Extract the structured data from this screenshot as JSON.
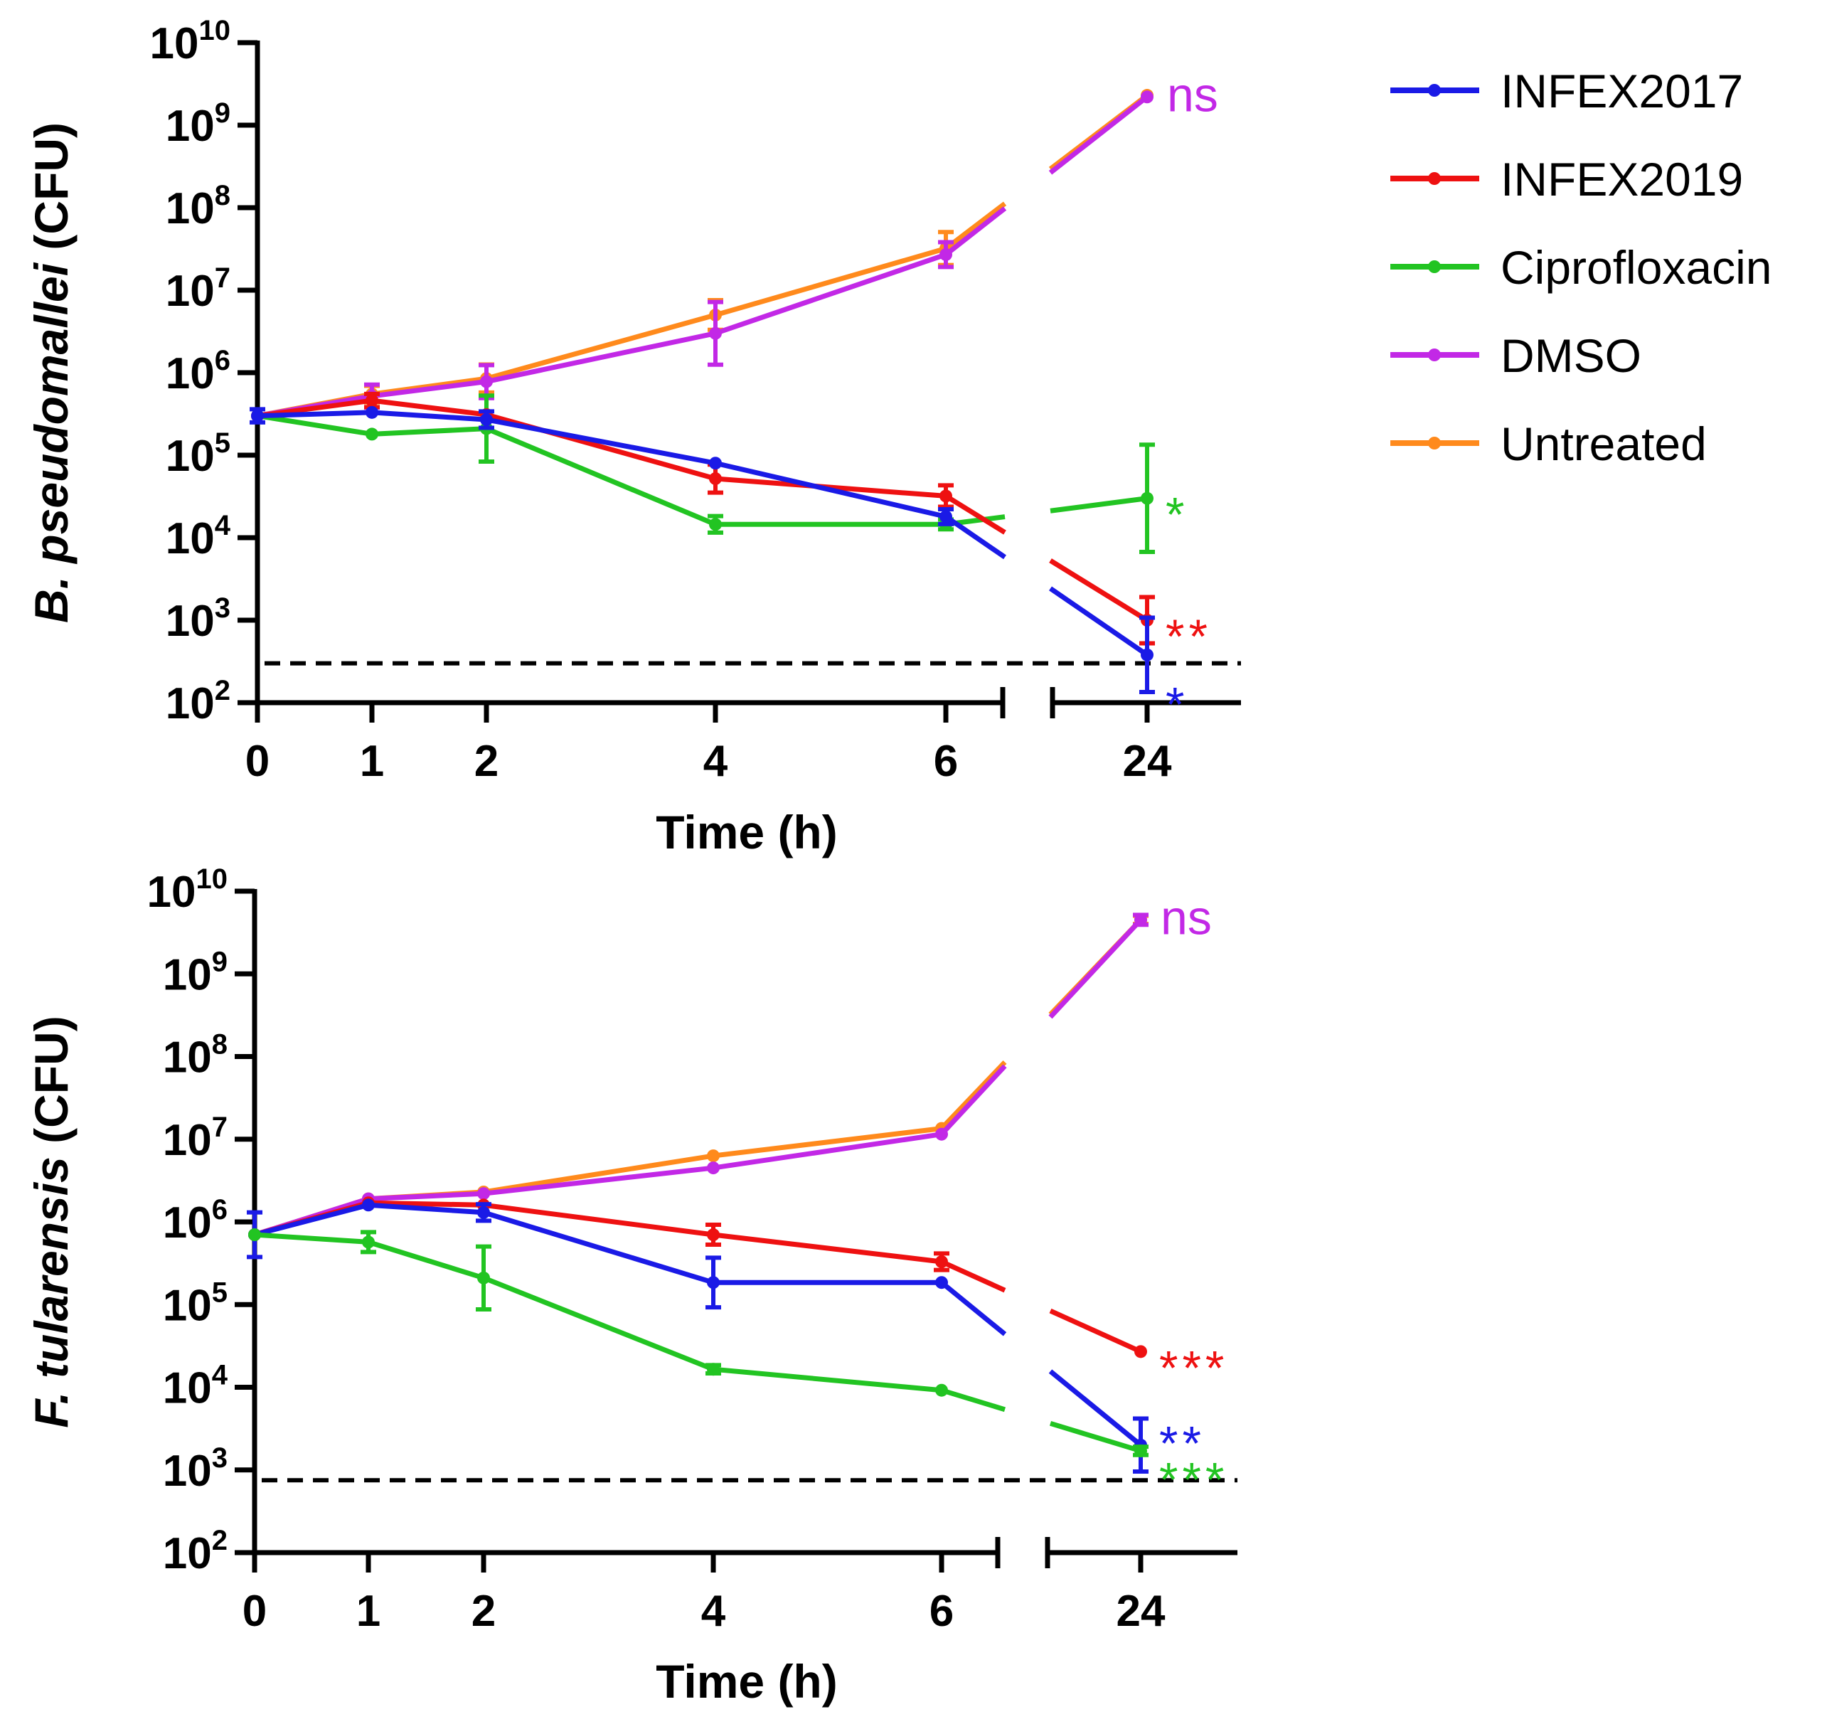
{
  "legend": [
    {
      "name": "INFEX2017",
      "color": "#1a1ae6"
    },
    {
      "name": "INFEX2019",
      "color": "#ee1111"
    },
    {
      "name": "Ciprofloxacin",
      "color": "#22c422"
    },
    {
      "name": "DMSO",
      "color": "#c228e6"
    },
    {
      "name": "Untreated",
      "color": "#ff8a1c"
    }
  ],
  "chart_data": [
    {
      "type": "line",
      "title": "",
      "xlabel": "Time (h)",
      "ylabel_italic": "B. pseudomallei",
      "ylabel_rest": " (CFU)",
      "yscale": "log",
      "ylim": [
        100,
        10000000000
      ],
      "y_ticks": [
        {
          "base": "10",
          "exp": "2"
        },
        {
          "base": "10",
          "exp": "3"
        },
        {
          "base": "10",
          "exp": "4"
        },
        {
          "base": "10",
          "exp": "5"
        },
        {
          "base": "10",
          "exp": "6"
        },
        {
          "base": "10",
          "exp": "7"
        },
        {
          "base": "10",
          "exp": "8"
        },
        {
          "base": "10",
          "exp": "9"
        },
        {
          "base": "10",
          "exp": "10"
        }
      ],
      "x_ticks": [
        "0",
        "1",
        "2",
        "4",
        "6",
        "24"
      ],
      "x": [
        0,
        1,
        2,
        4,
        6,
        24
      ],
      "axis_break": "between 6 and 24",
      "detection_limit": 300,
      "series": [
        {
          "name": "Untreated",
          "color": "#ff8a1c",
          "values": [
            300000,
            550000,
            850000,
            5000000,
            32000000,
            2300000000
          ],
          "err": [
            0,
            0.1,
            0.17,
            0.18,
            0.2,
            0
          ]
        },
        {
          "name": "DMSO",
          "color": "#c228e6",
          "values": [
            300000,
            520000,
            780000,
            3000000,
            27000000,
            2200000000
          ],
          "err": [
            0,
            0.14,
            0.2,
            0.38,
            0.15,
            0
          ]
        },
        {
          "name": "Ciprofloxacin",
          "color": "#22c422",
          "values": [
            300000,
            180000,
            210000,
            14500,
            14500,
            30000
          ],
          "err": [
            0,
            0,
            0.4,
            0.1,
            0.06,
            0.65
          ]
        },
        {
          "name": "INFEX2019",
          "color": "#ee1111",
          "values": [
            300000,
            460000,
            310000,
            52000,
            32000,
            1000
          ],
          "err": [
            0,
            0.08,
            0,
            0.17,
            0.13,
            0.28
          ]
        },
        {
          "name": "INFEX2017",
          "color": "#1a1ae6",
          "values": [
            300000,
            330000,
            270000,
            80000,
            18000,
            380
          ],
          "err": [
            0.08,
            0,
            0.1,
            0,
            0.09,
            0.45
          ]
        }
      ],
      "annotations": [
        {
          "text": "ns",
          "color": "#c228e6",
          "at_value": 2200000000
        },
        {
          "text": "*",
          "color": "#22c422",
          "at_value": 30000
        },
        {
          "text": "**",
          "color": "#ee1111",
          "at_value": 1000
        },
        {
          "text": "*",
          "color": "#1a1ae6",
          "at_value": 150
        }
      ]
    },
    {
      "type": "line",
      "title": "",
      "xlabel": "Time (h)",
      "ylabel_italic": "F. tularensis",
      "ylabel_rest": " (CFU)",
      "yscale": "log",
      "ylim": [
        100,
        10000000000
      ],
      "y_ticks": [
        {
          "base": "10",
          "exp": "2"
        },
        {
          "base": "10",
          "exp": "3"
        },
        {
          "base": "10",
          "exp": "4"
        },
        {
          "base": "10",
          "exp": "5"
        },
        {
          "base": "10",
          "exp": "6"
        },
        {
          "base": "10",
          "exp": "7"
        },
        {
          "base": "10",
          "exp": "8"
        },
        {
          "base": "10",
          "exp": "9"
        },
        {
          "base": "10",
          "exp": "10"
        }
      ],
      "x_ticks": [
        "0",
        "1",
        "2",
        "4",
        "6",
        "24"
      ],
      "x": [
        0,
        1,
        2,
        4,
        6,
        24
      ],
      "axis_break": "between 6 and 24",
      "detection_limit": 750,
      "series": [
        {
          "name": "Untreated",
          "color": "#ff8a1c",
          "values": [
            700000,
            1900000,
            2300000,
            6300000,
            13500000,
            4500000000
          ],
          "err": [
            0,
            0,
            0,
            0,
            0,
            0.05
          ]
        },
        {
          "name": "DMSO",
          "color": "#c228e6",
          "values": [
            700000,
            1900000,
            2200000,
            4500000,
            11500000,
            4500000000
          ],
          "err": [
            0,
            0,
            0,
            0,
            0,
            0.06
          ]
        },
        {
          "name": "INFEX2019",
          "color": "#ee1111",
          "values": [
            700000,
            1700000,
            1600000,
            700000,
            330000,
            27000
          ],
          "err": [
            0,
            0,
            0,
            0.12,
            0.1,
            0
          ]
        },
        {
          "name": "INFEX2017",
          "color": "#1a1ae6",
          "values": [
            700000,
            1600000,
            1300000,
            185000,
            185000,
            2000
          ],
          "err": [
            0.27,
            0,
            0.1,
            0.3,
            0,
            0.32
          ]
        },
        {
          "name": "Ciprofloxacin",
          "color": "#22c422",
          "values": [
            700000,
            570000,
            210000,
            16500,
            9200,
            1700
          ],
          "err": [
            0,
            0.12,
            0.38,
            0.05,
            0,
            0.05
          ]
        }
      ],
      "annotations": [
        {
          "text": "ns",
          "color": "#c228e6",
          "at_value": 4500000000
        },
        {
          "text": "***",
          "color": "#ee1111",
          "at_value": 27000
        },
        {
          "text": "**",
          "color": "#1a1ae6",
          "at_value": 3300
        },
        {
          "text": "***",
          "color": "#22c422",
          "at_value": 1200
        }
      ]
    }
  ]
}
